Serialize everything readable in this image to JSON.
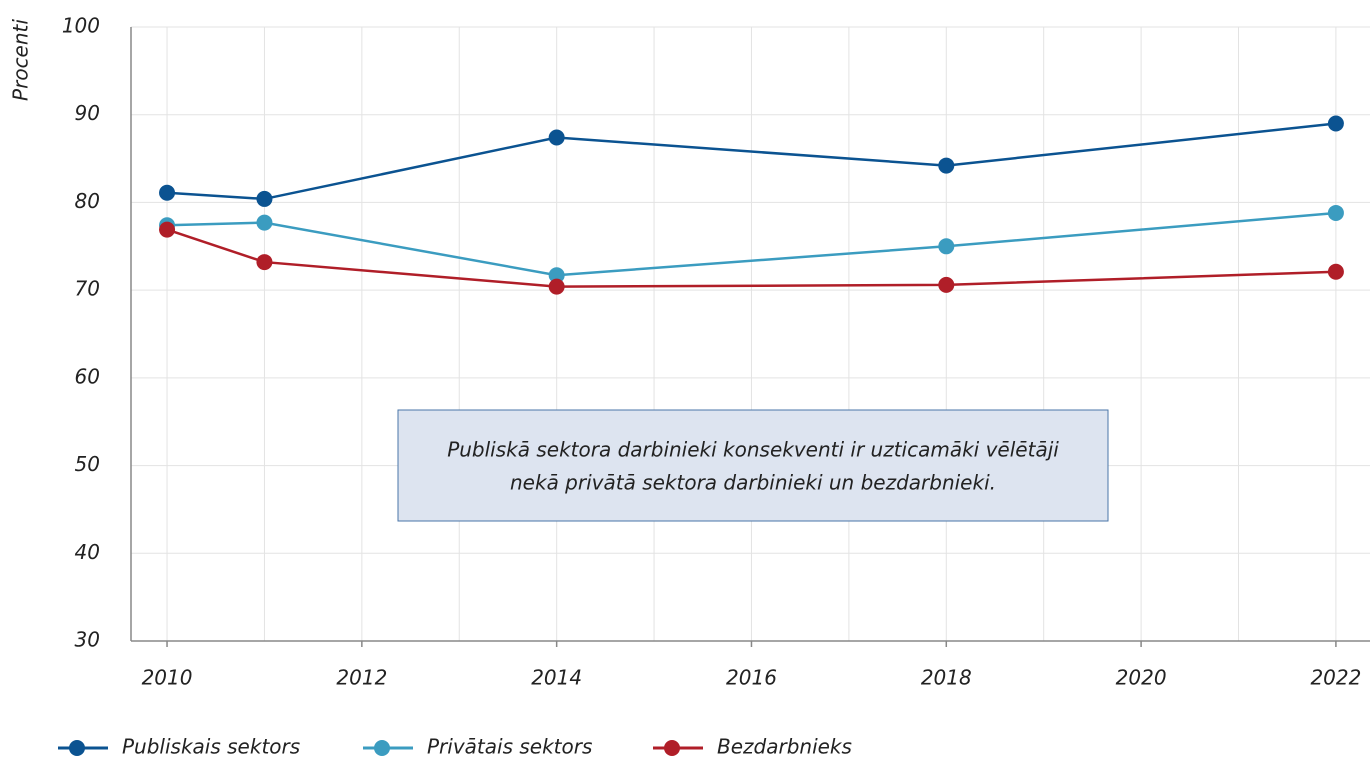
{
  "chart_data": {
    "type": "line",
    "y_label": "Procenti",
    "x": [
      2010,
      2011,
      2014,
      2018,
      2022
    ],
    "series": [
      {
        "name": "Publiskais sektors",
        "color": "#0b5391",
        "values": [
          81.1,
          80.4,
          87.4,
          84.2,
          89.0
        ]
      },
      {
        "name": "Privātais sektors",
        "color": "#3b9cc0",
        "values": [
          77.4,
          77.7,
          71.7,
          75.0,
          78.8
        ]
      },
      {
        "name": "Bezdarbnieks",
        "color": "#b01e28",
        "values": [
          76.9,
          73.2,
          70.4,
          70.6,
          72.1
        ]
      }
    ],
    "xlim": [
      2009.63,
      2022.35
    ],
    "xticks": [
      2010,
      2012,
      2014,
      2016,
      2018,
      2020,
      2022
    ],
    "xminorticks": [
      2011,
      2013,
      2015,
      2017,
      2019,
      2021
    ],
    "ylim": [
      30,
      100
    ],
    "yticks": [
      30,
      40,
      50,
      60,
      70,
      80,
      90,
      100
    ],
    "grid": true,
    "legend": "bottom",
    "annotation": [
      "Publiskā sektora darbinieki konsekventi ir uzticamāki vēlētāji",
      "nekā privātā sektora darbinieki un bezdarbnieki."
    ]
  }
}
